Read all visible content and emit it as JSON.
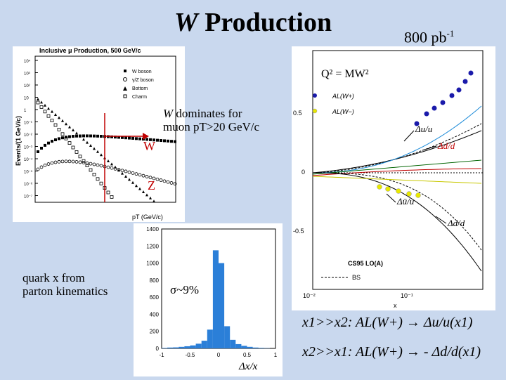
{
  "title": {
    "var": "W",
    "rest": " Production"
  },
  "lumi": {
    "base": "800 pb",
    "exp": "-1"
  },
  "notes": {
    "w_dominates_var": "W",
    "w_dominates_rest": " dominates for",
    "muon_line": "muon pT>20 GeV/c",
    "quark_line1": "quark x from",
    "quark_line2": "parton kinematics"
  },
  "formulas": {
    "f1": "x1>>x2: AL(W+) → Δu/u(x1)",
    "f2": "x2>>x1: AL(W+) → - Δd/d(x1)"
  },
  "plot1": {
    "title": "Inclusive μ Production, 500 GeV/c",
    "ylabel": "Events/(1 GeV/c)",
    "xlabel": "pT (GeV/c)",
    "legend": [
      "W boson",
      "γ/Z boson",
      "Bottom",
      "Charm"
    ],
    "yticks": [
      "10⁴",
      "10³",
      "10²",
      "10",
      "1",
      "10⁻¹",
      "10⁻²",
      "10⁻³",
      "10⁻⁴",
      "10⁻⁵",
      "10⁻⁶",
      "10⁻⁷"
    ],
    "label_w": "W",
    "label_z": "Z",
    "colors": {
      "arrow": "#c00000"
    }
  },
  "plot2": {
    "title": "Q² = MW²",
    "legend": [
      "AL(W+)",
      "AL(W−)"
    ],
    "yticks": [
      "0.5",
      "0",
      "-0.5"
    ],
    "labels": [
      "Δu/u",
      "Δd/d",
      "Δū/u",
      "Δd/d"
    ],
    "footer": [
      "CS95 LO(A)",
      "BS"
    ],
    "xtick_left": "10⁻²",
    "xtick_mid": "10⁻¹",
    "xaxis": "x",
    "colors": {
      "wplus": "#1a1aaa",
      "wminus": "#e8e800"
    }
  },
  "plot3": {
    "yticks": [
      "1400",
      "1200",
      "1000",
      "800",
      "600",
      "400",
      "200",
      "0"
    ],
    "xticks": [
      "-1",
      "-0.5",
      "0",
      "0.5",
      "1"
    ],
    "sigma": "σ~9%",
    "xlabel": "Δx/x",
    "colors": {
      "hist": "#2b7fd8"
    }
  },
  "chart_data": {
    "type": "bar",
    "x": [
      -0.95,
      -0.85,
      -0.75,
      -0.65,
      -0.55,
      -0.45,
      -0.35,
      -0.25,
      -0.15,
      -0.05,
      0.05,
      0.15,
      0.25,
      0.35,
      0.45,
      0.55,
      0.65,
      0.75,
      0.85,
      0.95
    ],
    "values": [
      5,
      10,
      12,
      18,
      25,
      35,
      55,
      90,
      220,
      1150,
      1000,
      260,
      100,
      50,
      30,
      18,
      10,
      6,
      3,
      0
    ],
    "xlabel": "Δx/x",
    "ylim": [
      0,
      1400
    ],
    "xlim": [
      -1,
      1
    ]
  }
}
